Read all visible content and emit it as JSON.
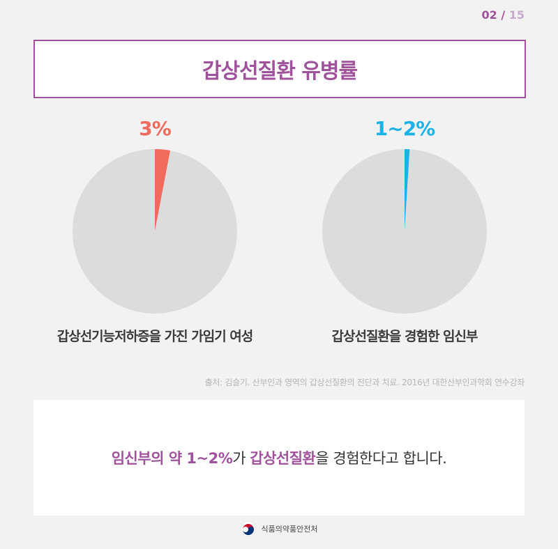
{
  "page": {
    "current": "02",
    "separator": "/",
    "total": "15"
  },
  "title": "갑상선질환 유병률",
  "colors": {
    "accent": "#a0519c",
    "pie_base": "#dcdcdc",
    "left_slice": "#f06b5e",
    "right_slice": "#1bb2e8"
  },
  "chart_data": [
    {
      "type": "pie",
      "label": "3%",
      "caption": "갑상선기능저하증을 가진 가임기 여성",
      "slices": [
        {
          "name": "갑상선기능저하증을 가진 가임기 여성",
          "value": 3,
          "color": "#f06b5e"
        },
        {
          "name": "",
          "value": 97,
          "color": "#dcdcdc"
        }
      ]
    },
    {
      "type": "pie",
      "label": "1~2%",
      "caption": "갑상선질환을 경험한 임신부",
      "slices": [
        {
          "name": "갑상선질환을 경험한 임신부",
          "value": 1,
          "color": "#1bb2e8"
        },
        {
          "name": "",
          "value": 99,
          "color": "#dcdcdc"
        }
      ]
    }
  ],
  "source": "출처: 김슬기. 산부인과 영역의 갑상선질환의 진단과 치료. 2016년 대한산부인과학회 연수강좌",
  "message": {
    "part1": "임신부의 약 1~2%",
    "part2": "가 ",
    "part3": "갑상선질환",
    "part4": "을 경험한다고 합니다."
  },
  "footer": {
    "org": "식품의약품안전처",
    "logo_icon": "korea-taegeuk-logo-icon"
  }
}
